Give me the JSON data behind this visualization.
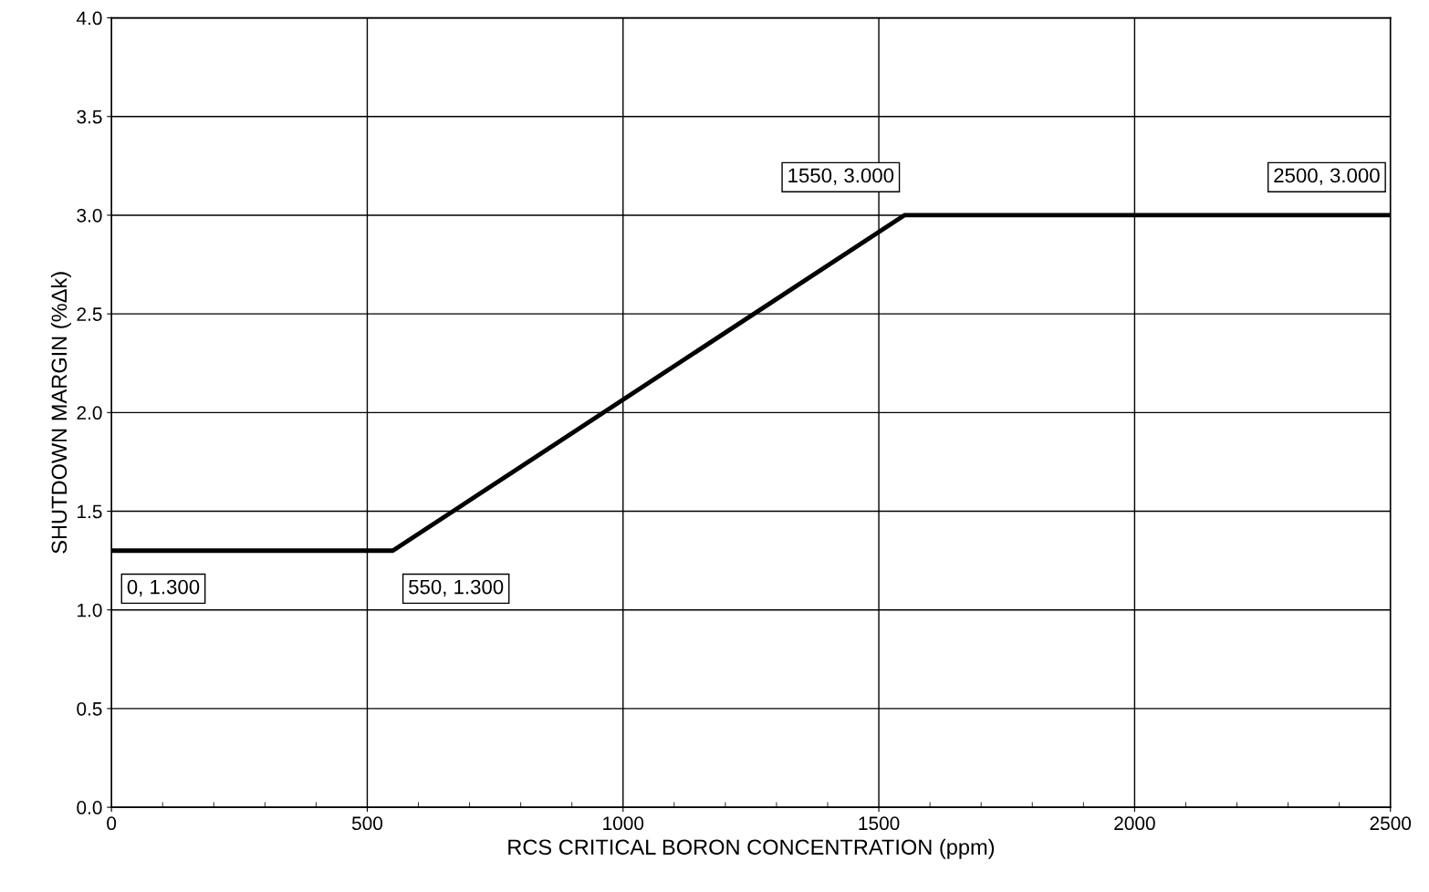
{
  "chart_data": {
    "type": "line",
    "xlabel": "RCS CRITICAL BORON CONCENTRATION (ppm)",
    "ylabel": "SHUTDOWN MARGIN (%Δk)",
    "x": [
      0,
      550,
      1550,
      2500
    ],
    "series": [
      {
        "color": "#000000",
        "values": [
          1.3,
          1.3,
          3.0,
          3.0
        ]
      }
    ],
    "xlim": [
      0,
      2500
    ],
    "xticks": [
      0,
      500,
      1000,
      1500,
      2000,
      2500
    ],
    "ylim": [
      0,
      4
    ],
    "yticks": [
      {
        "value": 0,
        "label": "0.0"
      },
      {
        "value": 0.5,
        "label": "0.5"
      },
      {
        "value": 1,
        "label": "1.0"
      },
      {
        "value": 1.5,
        "label": "1.5"
      },
      {
        "value": 2,
        "label": "2.0"
      },
      {
        "value": 2.5,
        "label": "2.5"
      },
      {
        "value": 3,
        "label": "3.0"
      },
      {
        "value": 3.5,
        "label": "3.5"
      },
      {
        "value": 4,
        "label": "4.0"
      }
    ],
    "grid": true,
    "marker": "none",
    "line_style": "solid",
    "annotations": [
      {
        "text": "0, 1.300",
        "x": 0,
        "y": 1.3
      },
      {
        "text": "550, 1.300",
        "x": 550,
        "y": 1.3
      },
      {
        "text": "1550, 3.000",
        "x": 1550,
        "y": 3.0
      },
      {
        "text": "2500, 3.000",
        "x": 2500,
        "y": 3.0
      }
    ]
  }
}
